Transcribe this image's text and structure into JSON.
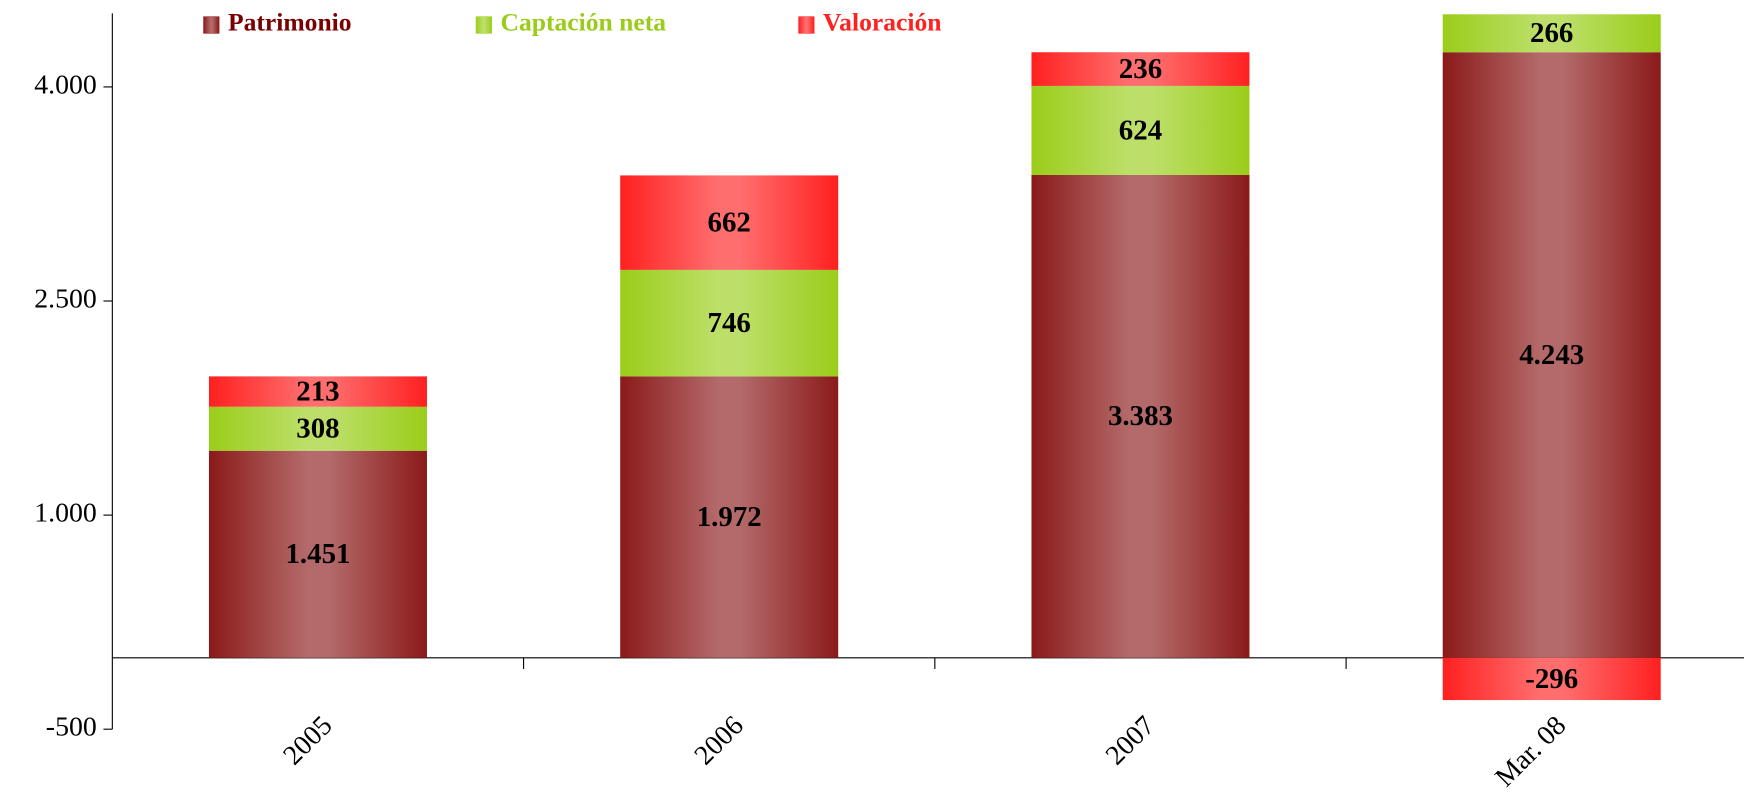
{
  "chart_data": {
    "type": "stacked_bar",
    "categories": [
      "2005",
      "2006",
      "2007",
      "Mar. 08"
    ],
    "series": [
      {
        "name": "Patrimonio",
        "color": "#8b1a1a",
        "values": [
          1451,
          1972,
          3383,
          4243
        ],
        "value_labels": [
          "1.451",
          "1.972",
          "3.383",
          "4.243"
        ]
      },
      {
        "name": "Captación neta",
        "color": "#9acd1a",
        "values": [
          308,
          746,
          624,
          266
        ]
      },
      {
        "name": "Valoración",
        "color": "#ff2020",
        "values": [
          213,
          662,
          236,
          -296
        ]
      }
    ],
    "ylim": [
      -500,
      4500
    ],
    "yticks": [
      -500,
      {
        "value": 1000,
        "label": "1.000"
      },
      {
        "value": 2500,
        "label": "2.500"
      },
      {
        "value": 4000,
        "label": "4.000"
      }
    ],
    "legend": "top"
  }
}
